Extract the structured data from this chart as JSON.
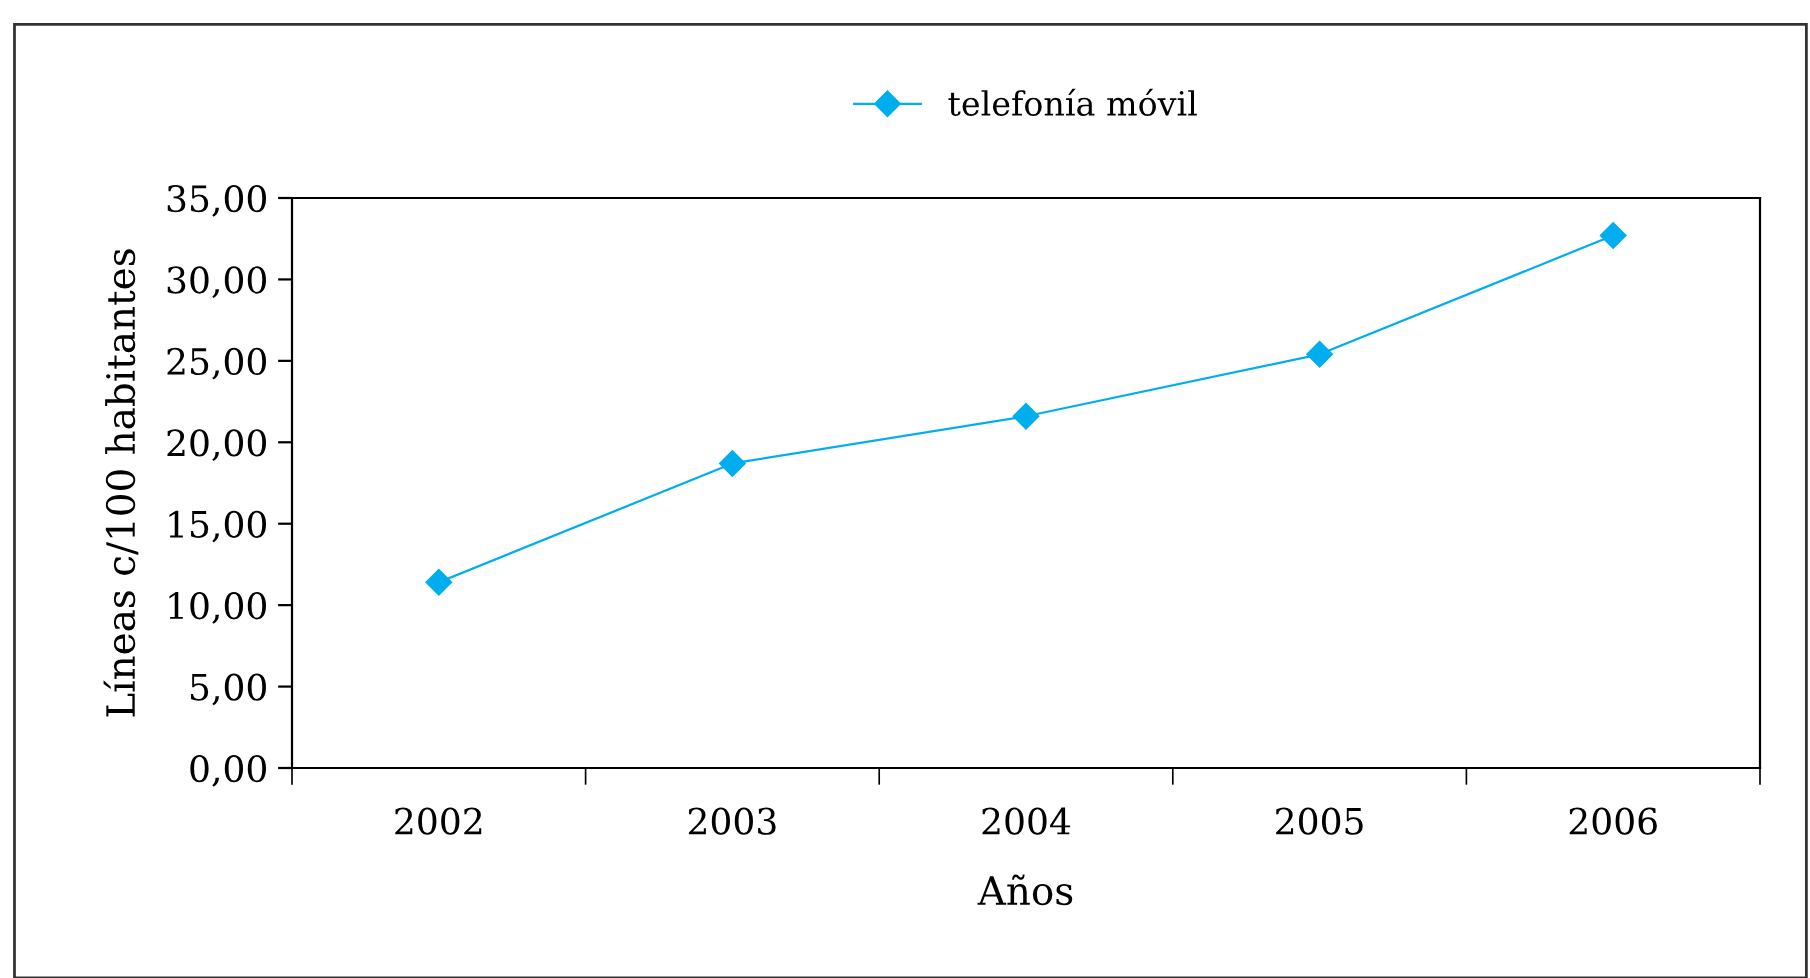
{
  "chart_data": {
    "type": "line",
    "xlabel": "Años",
    "ylabel": "Líneas c/100 habitantes",
    "categories": [
      "2002",
      "2003",
      "2004",
      "2005",
      "2006"
    ],
    "series": [
      {
        "name": "telefonía móvil",
        "color": "#00aeef",
        "values": [
          11.4,
          18.7,
          21.6,
          25.4,
          32.7
        ]
      }
    ],
    "ylim": [
      0,
      35
    ],
    "yticks": [
      {
        "value": 0,
        "label": "0,00"
      },
      {
        "value": 5,
        "label": "5,00"
      },
      {
        "value": 10,
        "label": "10,00"
      },
      {
        "value": 15,
        "label": "15,00"
      },
      {
        "value": 20,
        "label": "20,00"
      },
      {
        "value": 25,
        "label": "25,00"
      },
      {
        "value": 30,
        "label": "30,00"
      },
      {
        "value": 35,
        "label": "35,00"
      }
    ],
    "grid": false,
    "legend": "top",
    "marker": "diamond",
    "line_style": "solid"
  }
}
